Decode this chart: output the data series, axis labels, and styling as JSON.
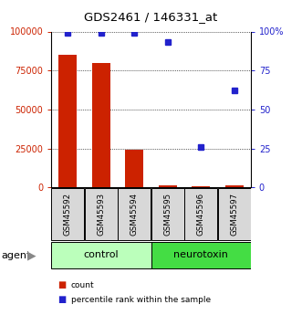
{
  "title": "GDS2461 / 146331_at",
  "samples": [
    "GSM45592",
    "GSM45593",
    "GSM45594",
    "GSM45595",
    "GSM45596",
    "GSM45597"
  ],
  "counts": [
    85000,
    80000,
    24000,
    1200,
    1000,
    1200
  ],
  "percentiles": [
    99,
    99,
    99,
    93,
    26,
    62
  ],
  "bar_color": "#cc2200",
  "dot_color": "#2222cc",
  "ylim_left": [
    0,
    100000
  ],
  "ylim_right": [
    0,
    100
  ],
  "yticks_left": [
    0,
    25000,
    50000,
    75000,
    100000
  ],
  "yticks_right": [
    0,
    25,
    50,
    75,
    100
  ],
  "yticklabels_left": [
    "0",
    "25000",
    "50000",
    "75000",
    "100000"
  ],
  "yticklabels_right": [
    "0",
    "25",
    "50",
    "75",
    "100%"
  ],
  "control_color": "#bbffbb",
  "neurotoxin_color": "#44dd44",
  "legend_items": [
    {
      "label": "count",
      "color": "#cc2200"
    },
    {
      "label": "percentile rank within the sample",
      "color": "#2222cc"
    }
  ],
  "bg_color": "#ffffff"
}
